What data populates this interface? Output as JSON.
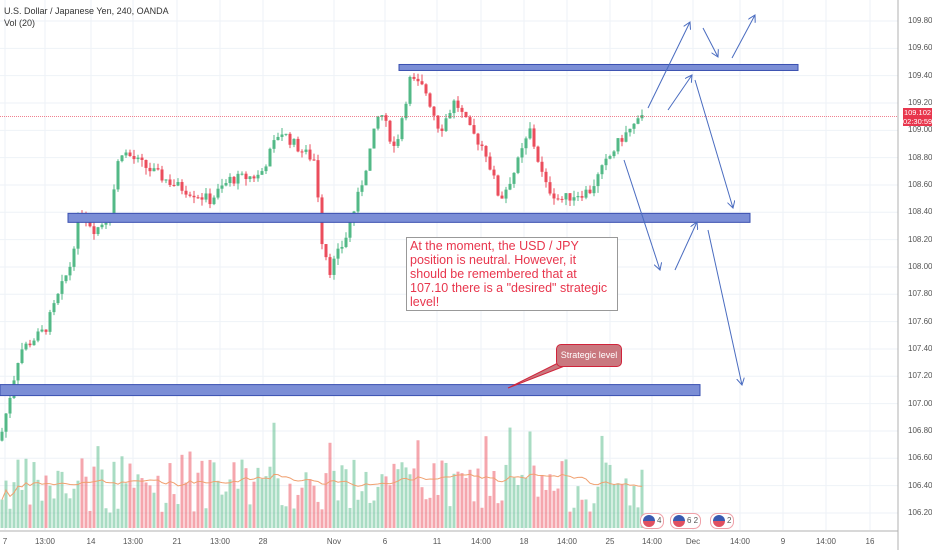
{
  "header": {
    "title": "U.S. Dollar / Japanese Yen, 240, OANDA",
    "indicator": "Vol (20)"
  },
  "price_axis": {
    "labels": [
      "109.800",
      "109.600",
      "109.400",
      "109.200",
      "109.000",
      "108.800",
      "108.600",
      "108.400",
      "108.200",
      "108.000",
      "107.800",
      "107.600",
      "107.400",
      "107.200",
      "107.000",
      "106.800",
      "106.600",
      "106.400",
      "106.200"
    ],
    "current_price": "109.102",
    "countdown": "02:30:59"
  },
  "time_axis": {
    "labels": [
      "7",
      "13:00",
      "14",
      "13:00",
      "21",
      "13:00",
      "28",
      "Nov",
      "6",
      "11",
      "14:00",
      "18",
      "14:00",
      "25",
      "14:00",
      "Dec",
      "14:00",
      "9",
      "14:00",
      "16"
    ]
  },
  "annotation": {
    "text": "At the moment, the USD / JPY position is neutral. However, it should be remembered that at 107.10 there is a \"desired\" strategic level!"
  },
  "callout": {
    "text": "Strategic level"
  },
  "events": [
    {
      "label": "4"
    },
    {
      "label": "6 2"
    },
    {
      "label": "2"
    }
  ],
  "colors": {
    "up": "#53b987",
    "down": "#eb4d5c",
    "zone": "#7b8ed6",
    "current": "#e8364d"
  },
  "chart_data": {
    "type": "candlestick",
    "symbol": "USDJPY",
    "path": [
      [
        0,
        106.73
      ],
      [
        20,
        107.39
      ],
      [
        45,
        107.54
      ],
      [
        70,
        108.01
      ],
      [
        80,
        108.42
      ],
      [
        95,
        108.27
      ],
      [
        110,
        108.38
      ],
      [
        120,
        108.86
      ],
      [
        150,
        108.71
      ],
      [
        175,
        108.6
      ],
      [
        210,
        108.49
      ],
      [
        230,
        108.64
      ],
      [
        260,
        108.67
      ],
      [
        280,
        109.0
      ],
      [
        300,
        108.86
      ],
      [
        315,
        108.78
      ],
      [
        322,
        108.2
      ],
      [
        330,
        107.98
      ],
      [
        345,
        108.2
      ],
      [
        360,
        108.56
      ],
      [
        380,
        109.15
      ],
      [
        395,
        108.86
      ],
      [
        410,
        109.37
      ],
      [
        425,
        109.3
      ],
      [
        440,
        109.0
      ],
      [
        455,
        109.22
      ],
      [
        470,
        109.0
      ],
      [
        485,
        108.86
      ],
      [
        500,
        108.49
      ],
      [
        515,
        108.71
      ],
      [
        530,
        109.0
      ],
      [
        545,
        108.6
      ],
      [
        560,
        108.49
      ],
      [
        575,
        108.53
      ],
      [
        590,
        108.56
      ],
      [
        605,
        108.75
      ],
      [
        620,
        108.93
      ],
      [
        635,
        109.04
      ],
      [
        645,
        109.1
      ]
    ],
    "zones": [
      109.46,
      108.36,
      107.1
    ],
    "ylim": [
      106.1,
      109.95
    ]
  }
}
